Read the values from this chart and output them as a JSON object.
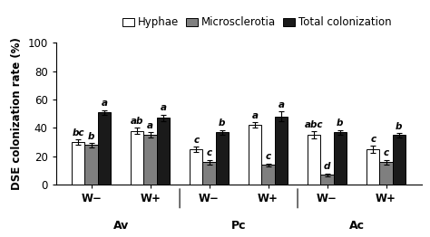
{
  "ylabel": "DSE colonization rate (%)",
  "ylim": [
    0,
    100
  ],
  "yticks": [
    0,
    20,
    40,
    60,
    80,
    100
  ],
  "groups": [
    "W−",
    "W+",
    "W−",
    "W+",
    "W−",
    "W+"
  ],
  "species_labels": [
    "Av",
    "Pc",
    "Ac"
  ],
  "bar_width": 0.22,
  "colors": {
    "Hyphae": "#ffffff",
    "Microsclerotia": "#7f7f7f",
    "Total colonization": "#1a1a1a"
  },
  "edgecolor": "#000000",
  "data": {
    "Hyphae": [
      30,
      38,
      25,
      42,
      35,
      25
    ],
    "Microsclerotia": [
      28,
      35,
      16,
      14,
      7,
      16
    ],
    "Total colonization": [
      51,
      47,
      37,
      48,
      37,
      35
    ]
  },
  "errors": {
    "Hyphae": [
      2.0,
      2.0,
      2.0,
      2.0,
      2.5,
      2.5
    ],
    "Microsclerotia": [
      1.5,
      2.0,
      1.5,
      1.0,
      1.0,
      1.5
    ],
    "Total colonization": [
      1.5,
      2.5,
      1.5,
      3.5,
      1.5,
      1.5
    ]
  },
  "significance": {
    "Hyphae": [
      "bc",
      "ab",
      "c",
      "a",
      "abc",
      "c"
    ],
    "Microsclerotia": [
      "b",
      "a",
      "c",
      "c",
      "d",
      "c"
    ],
    "Total colonization": [
      "a",
      "a",
      "b",
      "a",
      "b",
      "b"
    ]
  },
  "legend_order": [
    "Hyphae",
    "Microsclerotia",
    "Total colonization"
  ],
  "legend_fontsize": 8.5,
  "tick_fontsize": 8.5,
  "label_fontsize": 8.5,
  "sig_fontsize": 7.5,
  "species_fontsize": 9.0
}
